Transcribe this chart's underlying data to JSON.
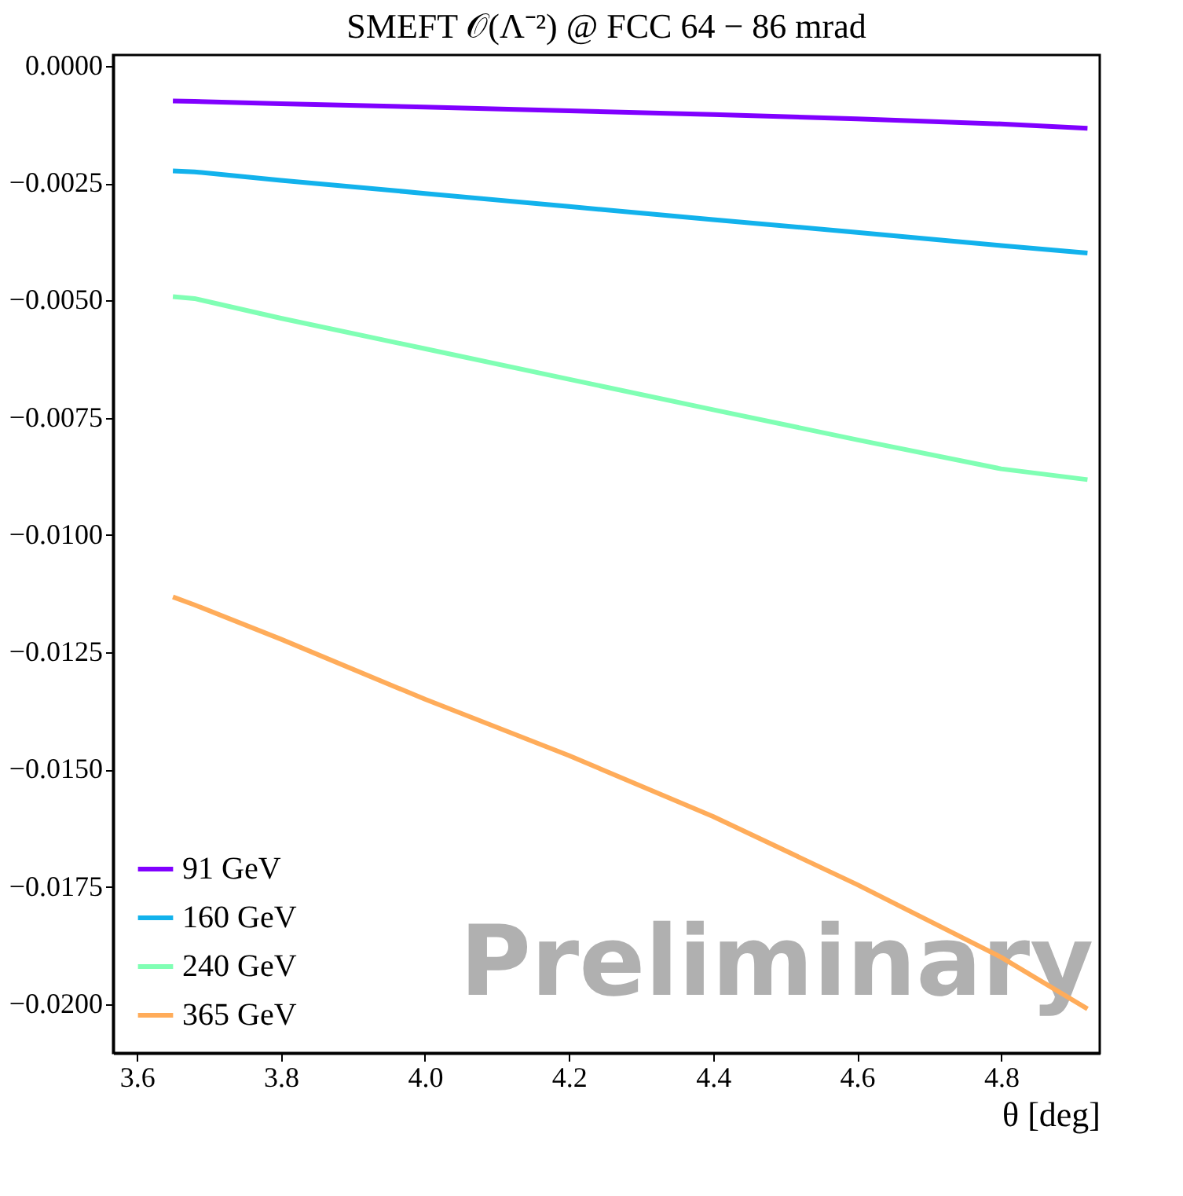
{
  "chart_data": {
    "type": "line",
    "title": "SMEFT 𝒪(Λ⁻²) @ FCC 64 − 86 mrad",
    "xlabel": "θ [deg]",
    "x": [
      3.65,
      3.68,
      3.8,
      4.0,
      4.2,
      4.4,
      4.6,
      4.8,
      4.92
    ],
    "series": [
      {
        "name": "91 GeV",
        "color": "#8000ff",
        "values": [
          -0.00075,
          -0.00076,
          -0.00081,
          -0.00088,
          -0.00096,
          -0.00104,
          -0.00113,
          -0.00124,
          -0.00133
        ]
      },
      {
        "name": "160 GeV",
        "color": "#12b2ec",
        "values": [
          -0.00224,
          -0.00226,
          -0.00244,
          -0.00272,
          -0.003,
          -0.00328,
          -0.00355,
          -0.00383,
          -0.00399
        ]
      },
      {
        "name": "240 GeV",
        "color": "#80ffb4",
        "values": [
          -0.00492,
          -0.00496,
          -0.00538,
          -0.00603,
          -0.00668,
          -0.00733,
          -0.00797,
          -0.00859,
          -0.00882
        ]
      },
      {
        "name": "365 GeV",
        "color": "#ffac5a",
        "values": [
          -0.01132,
          -0.01149,
          -0.01222,
          -0.0135,
          -0.0147,
          -0.016,
          -0.01745,
          -0.019,
          -0.0201
        ]
      }
    ],
    "xlim": [
      3.567,
      4.937
    ],
    "xticks": [
      3.6,
      3.8,
      {
        "value": 4.0,
        "label": "4.0"
      },
      4.2,
      4.4,
      4.6,
      4.8
    ],
    "ylim": [
      -0.02104,
      0.00023
    ],
    "yticks": [
      {
        "value": 0.0,
        "label": "0.0000"
      },
      {
        "value": -0.0025,
        "label": "−0.0025"
      },
      {
        "value": -0.005,
        "label": "−0.0050"
      },
      {
        "value": -0.0075,
        "label": "−0.0075"
      },
      {
        "value": -0.01,
        "label": "−0.0100"
      },
      {
        "value": -0.0125,
        "label": "−0.0125"
      },
      {
        "value": -0.015,
        "label": "−0.0150"
      },
      {
        "value": -0.0175,
        "label": "−0.0175"
      },
      {
        "value": -0.02,
        "label": "−0.0200"
      }
    ],
    "annotations": [
      "Preliminary"
    ],
    "legend": "bottom left",
    "grid": false,
    "marker": "none",
    "line_style": "solid"
  }
}
